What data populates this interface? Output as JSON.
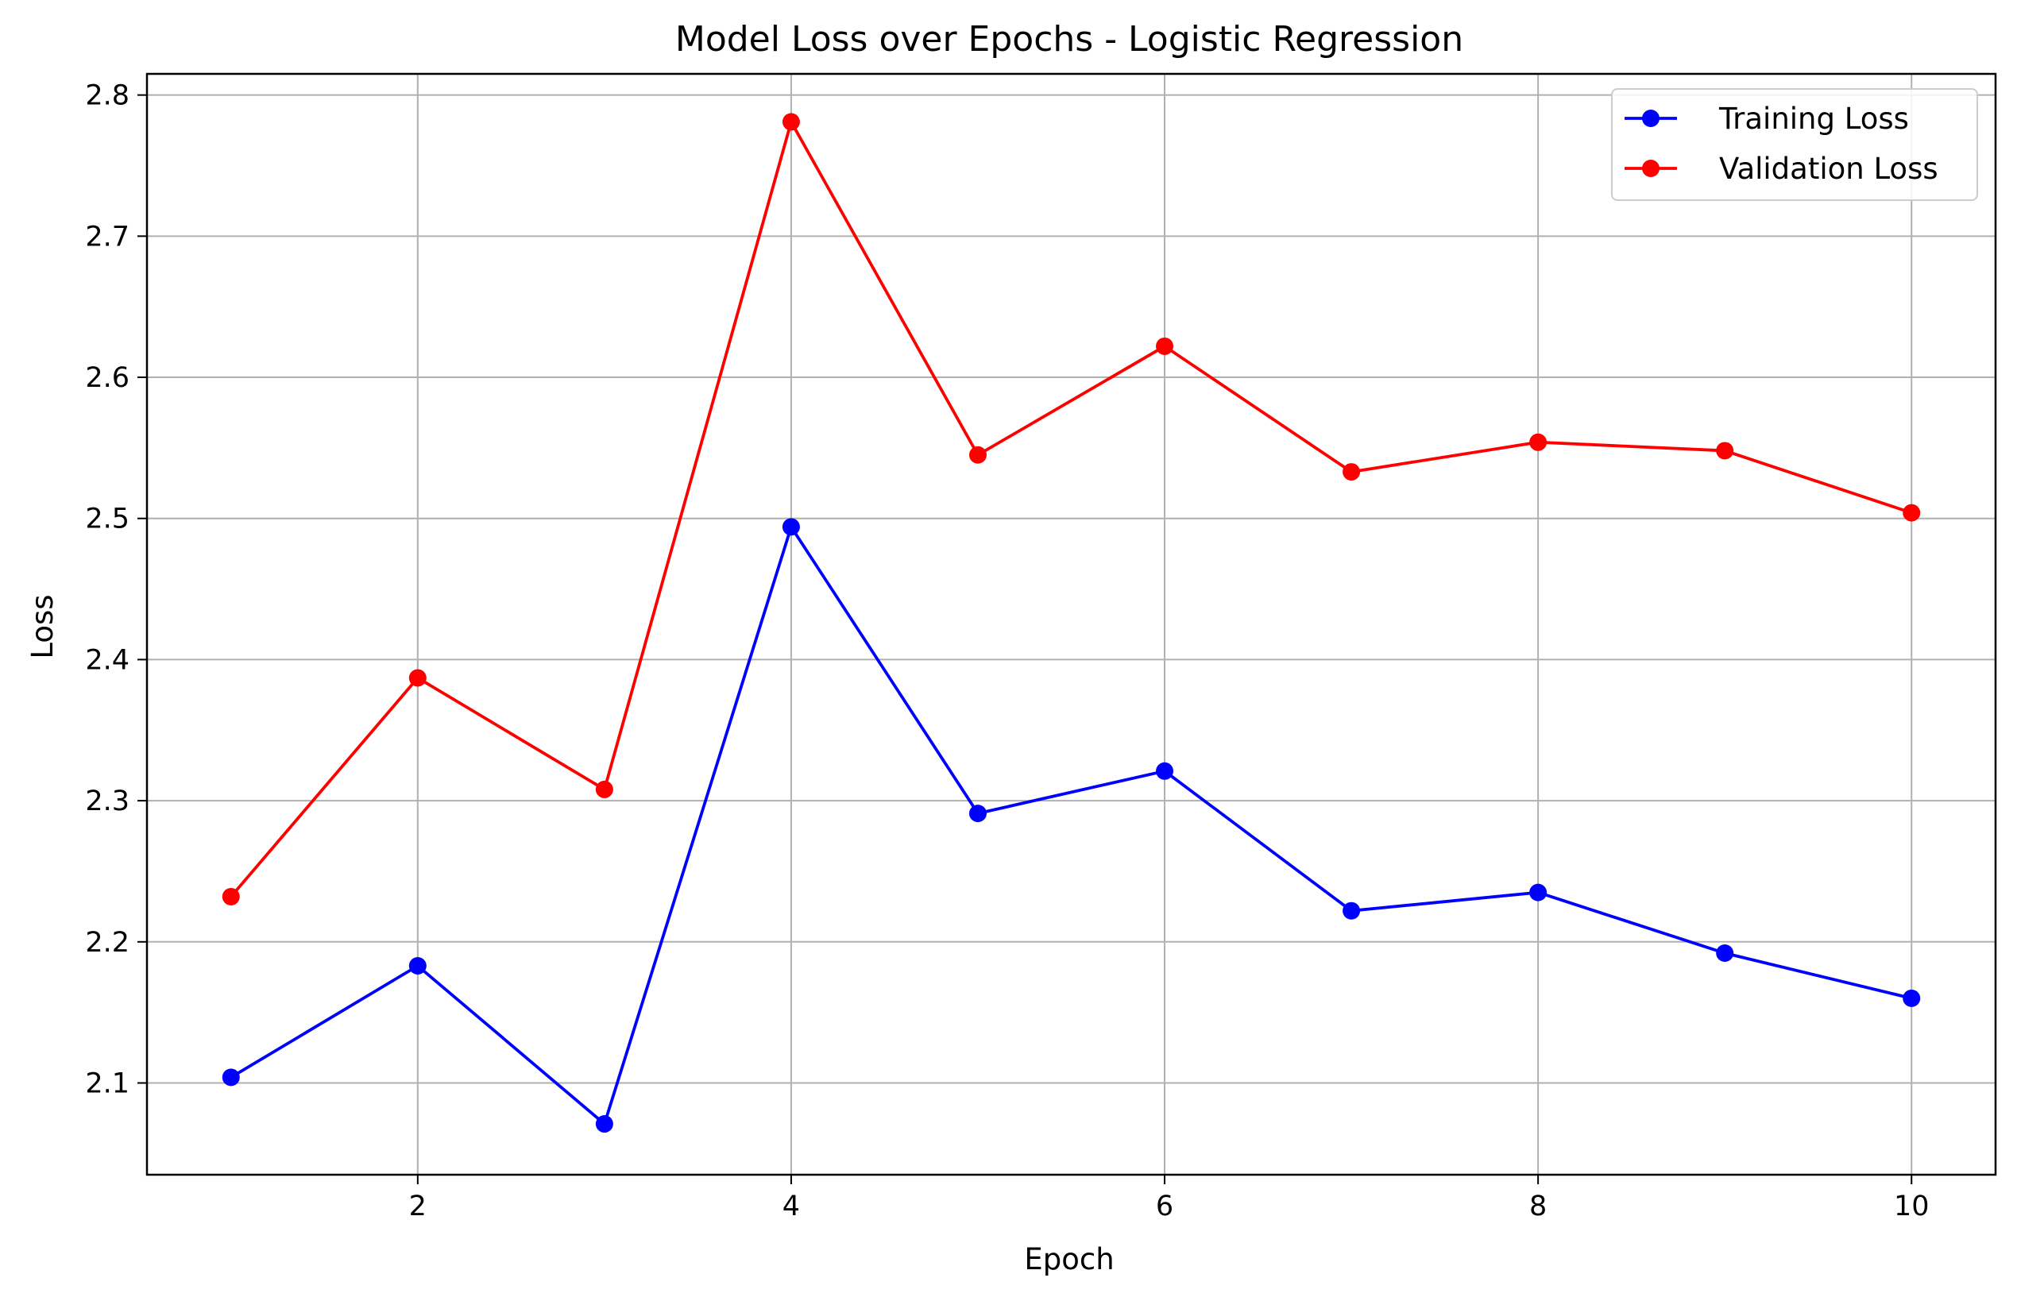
{
  "chart_data": {
    "type": "line",
    "title": "Model Loss over Epochs - Logistic Regression",
    "xlabel": "Epoch",
    "ylabel": "Loss",
    "x": [
      1,
      2,
      3,
      4,
      5,
      6,
      7,
      8,
      9,
      10
    ],
    "xlim": [
      0.55,
      10.45
    ],
    "ylim": [
      2.035,
      2.815
    ],
    "xticks": [
      2,
      4,
      6,
      8,
      10
    ],
    "yticks": [
      2.1,
      2.2,
      2.3,
      2.4,
      2.5,
      2.6,
      2.7,
      2.8
    ],
    "grid": true,
    "legend_position": "top-right",
    "series": [
      {
        "name": "Training Loss",
        "color": "#0000ff",
        "marker": "circle",
        "values": [
          2.104,
          2.183,
          2.071,
          2.494,
          2.291,
          2.321,
          2.222,
          2.235,
          2.192,
          2.16
        ]
      },
      {
        "name": "Validation Loss",
        "color": "#ff0000",
        "marker": "circle",
        "values": [
          2.232,
          2.387,
          2.308,
          2.781,
          2.545,
          2.622,
          2.533,
          2.554,
          2.548,
          2.504
        ]
      }
    ]
  }
}
